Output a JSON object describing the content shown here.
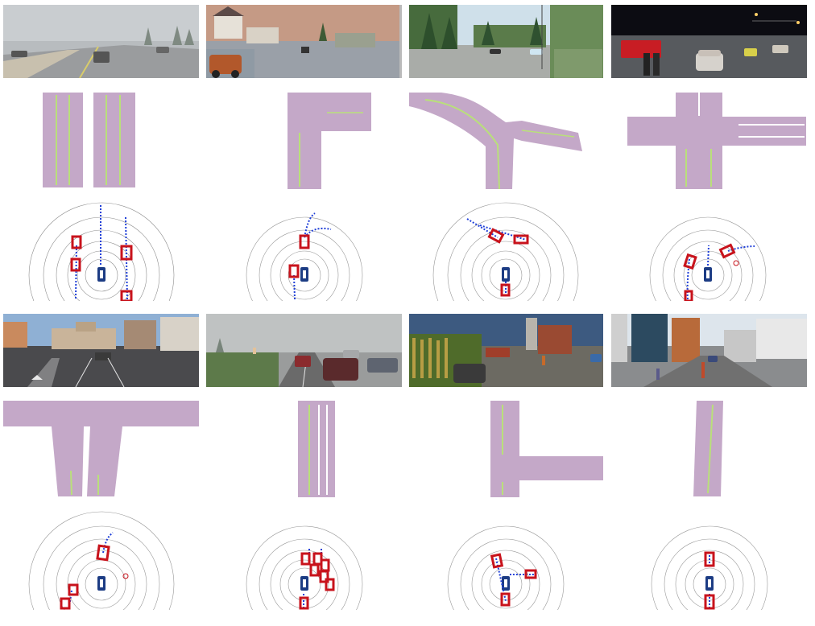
{
  "figure": {
    "kind": "grid of driving scenes",
    "scene_count": 8,
    "rows_per_scene": [
      "camera",
      "bev-map",
      "lidar-plan"
    ]
  },
  "colors": {
    "road": "#c4a8c8",
    "lane": "#b9e07a",
    "box": "#c8131c",
    "trajectory": "#1f3fd8",
    "ego": "#1c3c84",
    "ego_ring": "#ffffff",
    "points": "#222222"
  }
}
